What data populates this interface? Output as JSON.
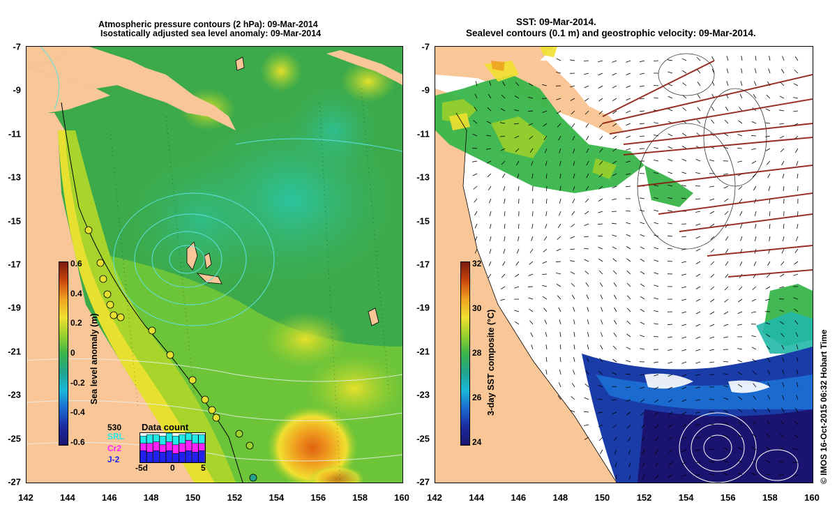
{
  "left_panel": {
    "title_line1": "Atmospheric pressure contours (2 hPa): 09-Mar-2014",
    "title_line2": "Isostatically adjusted sea level anomaly: 09-Mar-2014",
    "colorbar": {
      "label": "Sea level anomaly (m)",
      "ticks": [
        "0.6",
        "0.4",
        "0.2",
        "0",
        "-0.2",
        "-0.4",
        "-0.6"
      ],
      "colors": [
        "#7a1a0c",
        "#c8460c",
        "#f0a020",
        "#f0e030",
        "#9ad02c",
        "#39b54a",
        "#22a38a",
        "#18b8d8",
        "#1a6ad0",
        "#1c2ca0",
        "#1a1470"
      ]
    },
    "data_count": {
      "title": "Data count",
      "ticks": [
        "-5d",
        "0",
        "5"
      ],
      "satellites": [
        {
          "label": "530",
          "color": "#000000"
        },
        {
          "label": "SRL",
          "color": "#22e8e8"
        },
        {
          "label": "Cr2",
          "color": "#ff22ff"
        },
        {
          "label": "J-2",
          "color": "#2222ee"
        }
      ],
      "bars": [
        [
          0.4,
          0.25,
          0.25
        ],
        [
          0.35,
          0.3,
          0.3
        ],
        [
          0.4,
          0.3,
          0.25
        ],
        [
          0.35,
          0.25,
          0.3
        ],
        [
          0.4,
          0.3,
          0.3
        ],
        [
          0.3,
          0.3,
          0.3
        ],
        [
          0.35,
          0.3,
          0.3
        ],
        [
          0.4,
          0.35,
          0.25
        ],
        [
          0.35,
          0.3,
          0.3
        ],
        [
          0.4,
          0.25,
          0.3
        ]
      ]
    }
  },
  "right_panel": {
    "title_line1": "SST: 09-Mar-2014.",
    "title_line2": "Sealevel contours (0.1 m) and geostrophic velocity: 09-Mar-2014.",
    "colorbar": {
      "label": "3-day SST composite (°C)",
      "ticks": [
        "32",
        "30",
        "28",
        "26",
        "24"
      ],
      "colors": [
        "#7a1a0c",
        "#c8460c",
        "#f0a020",
        "#f0e030",
        "#9ad02c",
        "#39b54a",
        "#22a38a",
        "#18b8d8",
        "#1a6ad0",
        "#1c2ca0",
        "#1a1470"
      ]
    }
  },
  "map": {
    "lon_ticks": [
      "142",
      "144",
      "146",
      "148",
      "150",
      "152",
      "154",
      "156",
      "158",
      "160"
    ],
    "lat_ticks": [
      "-7",
      "-9",
      "-11",
      "-13",
      "-15",
      "-17",
      "-19",
      "-21",
      "-23",
      "-25",
      "-27"
    ],
    "land_color": "#f9c797"
  },
  "copyright": "© IMOS 16-Oct-2015 06:32 Hobart Time"
}
